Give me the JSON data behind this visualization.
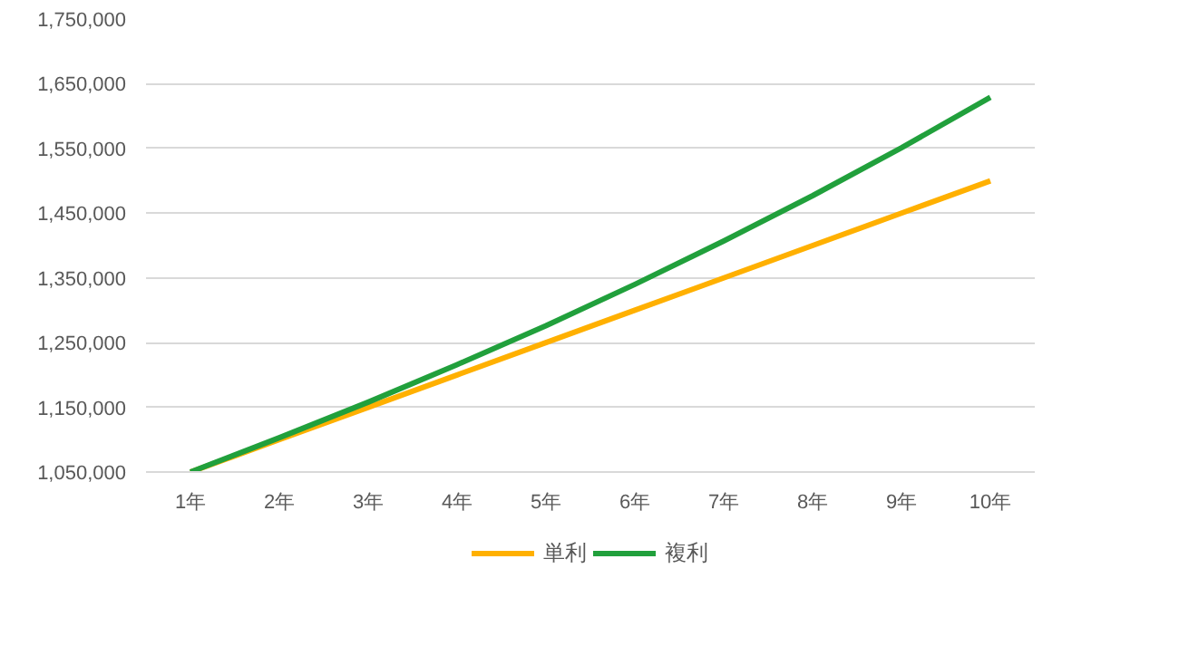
{
  "chart_data": {
    "type": "line",
    "categories": [
      "1年",
      "2年",
      "3年",
      "4年",
      "5年",
      "6年",
      "7年",
      "8年",
      "9年",
      "10年"
    ],
    "series": [
      {
        "name": "単利",
        "color": "#ffb000",
        "values": [
          1050000,
          1100000,
          1150000,
          1200000,
          1250000,
          1300000,
          1350000,
          1400000,
          1450000,
          1500000
        ]
      },
      {
        "name": "複利",
        "color": "#21a03c",
        "values": [
          1050000,
          1103000,
          1158000,
          1216000,
          1276000,
          1340000,
          1407000,
          1477000,
          1551000,
          1629000
        ]
      }
    ],
    "ylim": [
      1050000,
      1750000
    ],
    "yticks": [
      {
        "value": 1050000,
        "label": "1,050,000"
      },
      {
        "value": 1150000,
        "label": "1,150,000"
      },
      {
        "value": 1250000,
        "label": "1,250,000"
      },
      {
        "value": 1350000,
        "label": "1,350,000"
      },
      {
        "value": 1450000,
        "label": "1,450,000"
      },
      {
        "value": 1550000,
        "label": "1,550,000"
      },
      {
        "value": 1650000,
        "label": "1,650,000"
      },
      {
        "value": 1750000,
        "label": "1,750,000"
      }
    ],
    "grid": "y",
    "legend": "bottom",
    "marker": "none",
    "line_style": "solid"
  }
}
